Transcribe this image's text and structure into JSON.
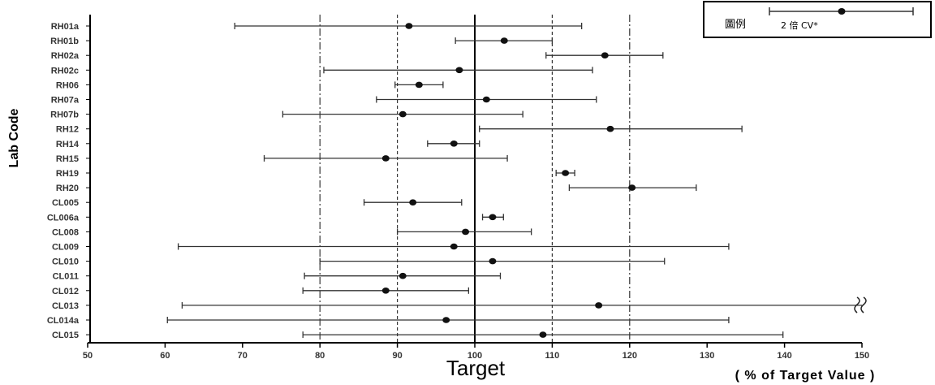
{
  "chart_data": {
    "type": "scatter",
    "subtype": "error-bar-forest-plot",
    "orientation": "horizontal",
    "title": "",
    "xlabel": "Target",
    "xlabel_secondary": "( % of Target Value )",
    "ylabel": "Lab Code",
    "xlim": [
      50,
      150
    ],
    "xticks": [
      50,
      60,
      70,
      80,
      90,
      100,
      110,
      120,
      130,
      140,
      150
    ],
    "reference_lines": {
      "solid": [
        100
      ],
      "dashed": [
        90,
        110
      ],
      "dash_dot": [
        80,
        120
      ]
    },
    "grid": false,
    "legend": {
      "placement": "top-right",
      "title": "圖例",
      "entry_label": "2 倍 CV*"
    },
    "categories": [
      "RH01a",
      "RH01b",
      "RH02a",
      "RH02c",
      "RH06",
      "RH07a",
      "RH07b",
      "RH12",
      "RH14",
      "RH15",
      "RH19",
      "RH20",
      "CL005",
      "CL006a",
      "CL008",
      "CL009",
      "CL010",
      "CL011",
      "CL012",
      "CL013",
      "CL014a",
      "CL015"
    ],
    "points": [
      {
        "lab": "RH01a",
        "value": 91.5,
        "low": 69.0,
        "high": 113.8
      },
      {
        "lab": "RH01b",
        "value": 103.8,
        "low": 97.5,
        "high": 110.0
      },
      {
        "lab": "RH02a",
        "value": 116.8,
        "low": 109.2,
        "high": 124.3
      },
      {
        "lab": "RH02c",
        "value": 98.0,
        "low": 80.5,
        "high": 115.2
      },
      {
        "lab": "RH06",
        "value": 92.8,
        "low": 89.7,
        "high": 95.9
      },
      {
        "lab": "RH07a",
        "value": 101.5,
        "low": 87.3,
        "high": 115.7
      },
      {
        "lab": "RH07b",
        "value": 90.7,
        "low": 75.2,
        "high": 106.2
      },
      {
        "lab": "RH12",
        "value": 117.5,
        "low": 100.6,
        "high": 134.5
      },
      {
        "lab": "RH14",
        "value": 97.3,
        "low": 93.9,
        "high": 100.6
      },
      {
        "lab": "RH15",
        "value": 88.5,
        "low": 72.8,
        "high": 104.2
      },
      {
        "lab": "RH19",
        "value": 111.7,
        "low": 110.5,
        "high": 112.9
      },
      {
        "lab": "RH20",
        "value": 120.3,
        "low": 112.2,
        "high": 128.6
      },
      {
        "lab": "CL005",
        "value": 92.0,
        "low": 85.7,
        "high": 98.3
      },
      {
        "lab": "CL006a",
        "value": 102.3,
        "low": 101.0,
        "high": 103.7
      },
      {
        "lab": "CL008",
        "value": 98.8,
        "low": 90.0,
        "high": 107.3
      },
      {
        "lab": "CL009",
        "value": 97.3,
        "low": 61.7,
        "high": 132.8
      },
      {
        "lab": "CL010",
        "value": 102.3,
        "low": 80.0,
        "high": 124.5
      },
      {
        "lab": "CL011",
        "value": 90.7,
        "low": 78.0,
        "high": 103.3
      },
      {
        "lab": "CL012",
        "value": 88.5,
        "low": 77.8,
        "high": 99.2
      },
      {
        "lab": "CL013",
        "value": 116.0,
        "low": 62.2,
        "high": 150.0,
        "truncated_high": true
      },
      {
        "lab": "CL014a",
        "value": 96.3,
        "low": 60.3,
        "high": 132.8
      },
      {
        "lab": "CL015",
        "value": 108.8,
        "low": 77.8,
        "high": 139.8
      }
    ]
  },
  "colors": {
    "axis": "#000000",
    "bar": "#333333",
    "point": "#111111",
    "ref_solid": "#000000",
    "ref_dashed": "#333333"
  }
}
